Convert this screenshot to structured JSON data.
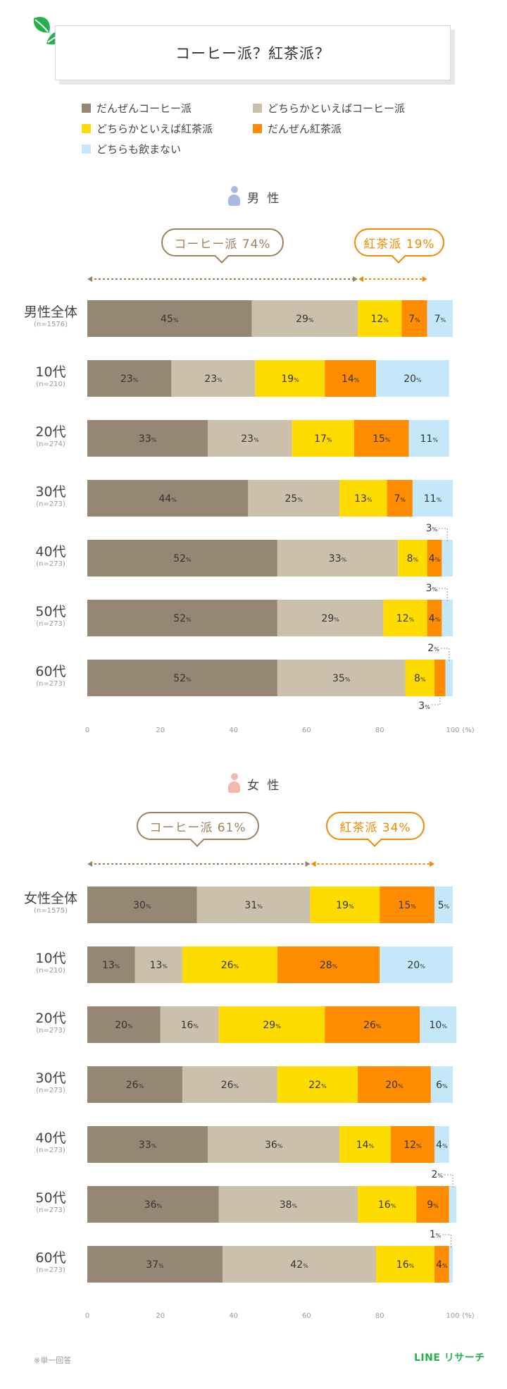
{
  "title": "コーヒー派？紅茶派？",
  "legend": [
    {
      "label": "だんぜんコーヒー派",
      "color": "#968674"
    },
    {
      "label": "どちらかといえばコーヒー派",
      "color": "#cbc0ab"
    },
    {
      "label": "どちらかといえば紅茶派",
      "color": "#ffdc00"
    },
    {
      "label": "だんぜん紅茶派",
      "color": "#ff8c00"
    },
    {
      "label": "どちらも飲まない",
      "color": "#c4e8f9"
    }
  ],
  "colors": {
    "coffee": "#a0805f",
    "tea": "#f08a00",
    "text_light": "#ffffff",
    "text_dark": "#333333",
    "male_icon": "#a9b9e0",
    "female_icon": "#f5b8ae"
  },
  "axis": {
    "ticks": [
      "0",
      "20",
      "40",
      "60",
      "80",
      "100"
    ],
    "unit": "(%)"
  },
  "sections": [
    {
      "id": "male",
      "title": "男 性",
      "coffee_label": "コーヒー派 74%",
      "coffee_value": 74,
      "tea_label": "紅茶派 19%",
      "tea_value": 19
    },
    {
      "id": "female",
      "title": "女 性",
      "coffee_label": "コーヒー派 61%",
      "coffee_value": 61,
      "tea_label": "紅茶派 34%",
      "tea_value": 34
    }
  ],
  "chart_data": [
    {
      "type": "bar",
      "stacked": true,
      "orientation": "horizontal",
      "title": "男 性",
      "categories": [
        "男性全体",
        "10代",
        "20代",
        "30代",
        "40代",
        "50代",
        "60代"
      ],
      "sample_sizes": [
        "(n=1576)",
        "(n=210)",
        "(n=274)",
        "(n=273)",
        "(n=273)",
        "(n=273)",
        "(n=273)"
      ],
      "xlim": [
        0,
        100
      ],
      "series": [
        {
          "name": "だんぜんコーヒー派",
          "values": [
            45,
            23,
            33,
            44,
            52,
            52,
            52
          ]
        },
        {
          "name": "どちらかといえばコーヒー派",
          "values": [
            29,
            23,
            23,
            25,
            33,
            29,
            35
          ]
        },
        {
          "name": "どちらかといえば紅茶派",
          "values": [
            12,
            19,
            17,
            13,
            8,
            12,
            8
          ]
        },
        {
          "name": "だんぜん紅茶派",
          "values": [
            7,
            14,
            15,
            7,
            4,
            4,
            3
          ]
        },
        {
          "name": "どちらも飲まない",
          "values": [
            7,
            20,
            11,
            11,
            3,
            3,
            2
          ]
        }
      ]
    },
    {
      "type": "bar",
      "stacked": true,
      "orientation": "horizontal",
      "title": "女 性",
      "categories": [
        "女性全体",
        "10代",
        "20代",
        "30代",
        "40代",
        "50代",
        "60代"
      ],
      "sample_sizes": [
        "(n=1575)",
        "(n=210)",
        "(n=273)",
        "(n=273)",
        "(n=273)",
        "(n=273)",
        "(n=273)"
      ],
      "xlim": [
        0,
        100
      ],
      "series": [
        {
          "name": "だんぜんコーヒー派",
          "values": [
            30,
            13,
            20,
            26,
            33,
            36,
            37
          ]
        },
        {
          "name": "どちらかといえばコーヒー派",
          "values": [
            31,
            13,
            16,
            26,
            36,
            38,
            42
          ]
        },
        {
          "name": "どちらかといえば紅茶派",
          "values": [
            19,
            26,
            29,
            22,
            14,
            16,
            16
          ]
        },
        {
          "name": "だんぜん紅茶派",
          "values": [
            15,
            28,
            26,
            20,
            12,
            9,
            4
          ]
        },
        {
          "name": "どちらも飲まない",
          "values": [
            5,
            20,
            10,
            6,
            4,
            2,
            1
          ]
        }
      ]
    }
  ],
  "footnote": "※単一回答",
  "brand": "LINE リサーチ"
}
